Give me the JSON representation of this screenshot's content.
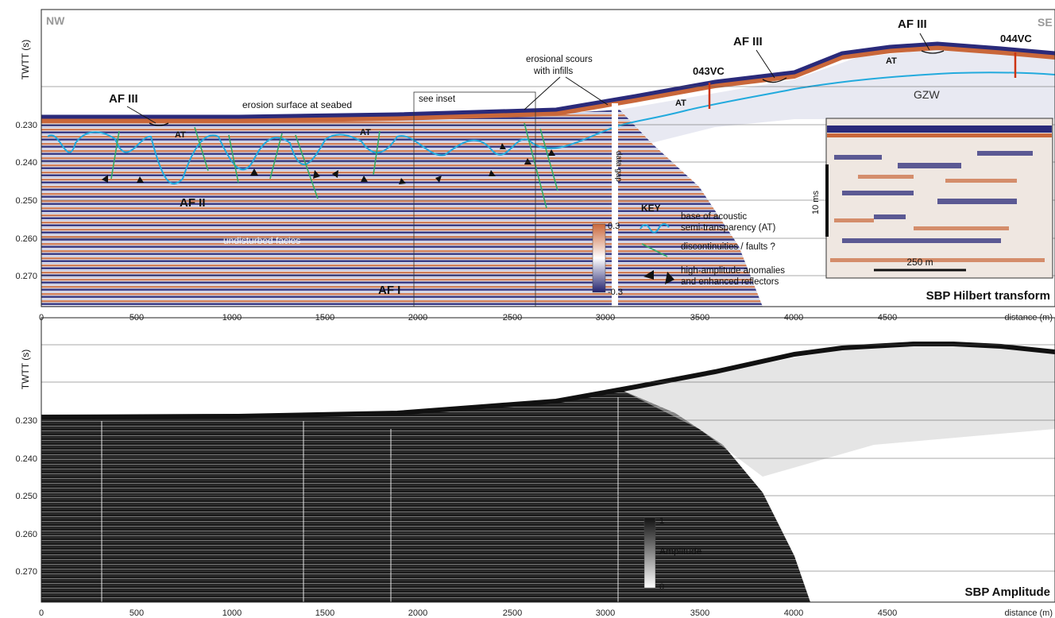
{
  "orientation": {
    "left": "NW",
    "right": "SE"
  },
  "panels": {
    "top": {
      "title": "SBP Hilbert transform"
    },
    "bottom": {
      "title": "SBP Amplitude"
    }
  },
  "axes": {
    "ylabel": "TWTT (s)",
    "xlabel": "distance (m)",
    "yticks": [
      "0.230",
      "0.240",
      "0.250",
      "0.260",
      "0.270"
    ],
    "xticks": [
      "0",
      "500",
      "1000",
      "1500",
      "2000",
      "2500",
      "3000",
      "3500",
      "4000",
      "4500"
    ]
  },
  "annotations": {
    "af3_left": "AF III",
    "af3_mid": "AF III",
    "af3_right": "AF III",
    "af2": "AF II",
    "af1": "AF I",
    "at1": "AT",
    "at2": "AT",
    "at3": "AT",
    "at4": "AT",
    "erosion_surface": "erosion surface at seabed",
    "scours_line1": "erosional scours",
    "scours_line2": "with infills",
    "see_inset": "see inset",
    "undisturbed": "undisturbed facies",
    "data_gap": "data gap",
    "gzw": "GZW",
    "core_043": "043VC",
    "core_044": "044VC"
  },
  "key": {
    "title": "KEY",
    "item1_line1": "base of acoustic",
    "item1_line2": "semi-transparency (AT)",
    "item2": "discontinuities / faults ?",
    "item3_line1": "high-amplitude anomalies",
    "item3_line2": "and enhanced reflectors"
  },
  "colorbars": {
    "hilbert": {
      "max": "0.3",
      "min": "-0.3"
    },
    "amplitude": {
      "max": "1",
      "label": "Amplitude",
      "min": "0"
    }
  },
  "inset": {
    "scale_v": "10 ms",
    "scale_h": "250 m"
  },
  "colors": {
    "positive": "#c9673a",
    "negative": "#2a2a7a",
    "at_line": "#22aadd",
    "fault_line": "#33aa66",
    "core": "#cc3311",
    "amp_black": "#111111"
  }
}
